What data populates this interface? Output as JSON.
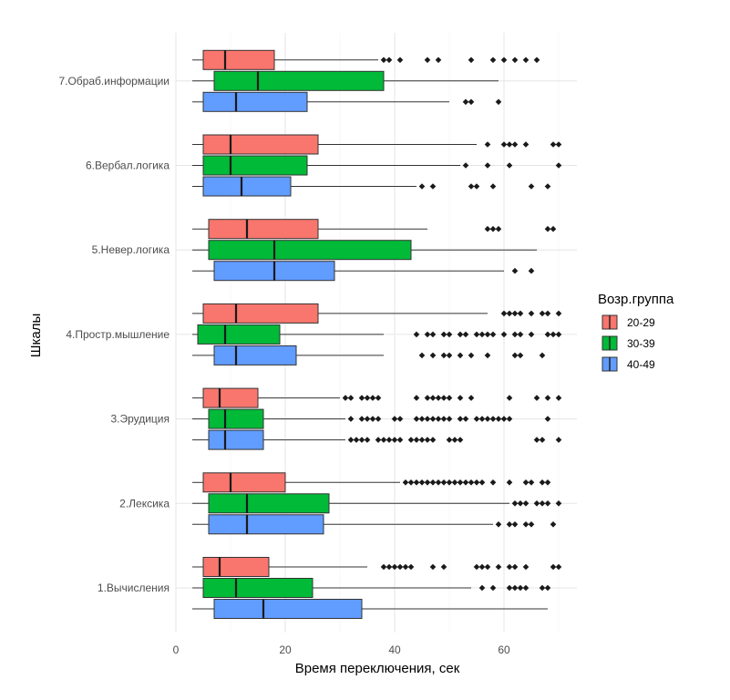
{
  "chart_data": {
    "type": "boxplot",
    "orientation": "horizontal",
    "xlabel": "Время переключения, сек",
    "ylabel": "Шкалы",
    "xlim": [
      -1,
      72
    ],
    "x_ticks": [
      0,
      20,
      40,
      60
    ],
    "grid": true,
    "legend": {
      "title": "Возр.группа",
      "position": "right",
      "entries": [
        "20-29",
        "30-39",
        "40-49"
      ]
    },
    "colors": {
      "20-29": "#F8766D",
      "30-39": "#00BA38",
      "40-49": "#619CFF"
    },
    "categories": [
      "1.Вычисления",
      "2.Лексика",
      "3.Эрудиция",
      "4.Простр.мышление",
      "5.Невер.логика",
      "6.Вербал.логика",
      "7.Обраб.информации"
    ],
    "series": [
      {
        "name": "20-29",
        "boxes": [
          {
            "min": 3,
            "q1": 5,
            "median": 8,
            "q3": 17,
            "max": 35,
            "outliers": [
              38,
              39,
              40,
              41,
              42,
              43,
              47,
              49,
              55,
              56,
              57,
              59,
              61,
              62,
              64,
              69,
              70
            ]
          },
          {
            "min": 3,
            "q1": 5,
            "median": 10,
            "q3": 20,
            "max": 41,
            "outliers": [
              42,
              43,
              44,
              45,
              46,
              47,
              48,
              49,
              50,
              51,
              52,
              53,
              54,
              55,
              56,
              58,
              61,
              64,
              65,
              67,
              68
            ]
          },
          {
            "min": 3,
            "q1": 5,
            "median": 8,
            "q3": 15,
            "max": 30,
            "outliers": [
              31,
              32,
              34,
              35,
              36,
              37,
              44,
              46,
              47,
              48,
              49,
              50,
              52,
              54,
              61,
              66,
              68,
              70
            ]
          },
          {
            "min": 3,
            "q1": 5,
            "median": 11,
            "q3": 26,
            "max": 57,
            "outliers": [
              60,
              61,
              62,
              63,
              65,
              67,
              68,
              70
            ]
          },
          {
            "min": 3,
            "q1": 6,
            "median": 13,
            "q3": 26,
            "max": 46,
            "outliers": [
              57,
              58,
              59,
              68,
              69
            ]
          },
          {
            "min": 3,
            "q1": 5,
            "median": 10,
            "q3": 26,
            "max": 55,
            "outliers": [
              57,
              60,
              61,
              62,
              64,
              69,
              70
            ]
          },
          {
            "min": 3,
            "q1": 5,
            "median": 9,
            "q3": 18,
            "max": 37,
            "outliers": [
              38,
              39,
              41,
              46,
              48,
              54,
              58,
              60,
              62,
              64,
              66
            ]
          }
        ]
      },
      {
        "name": "30-39",
        "boxes": [
          {
            "min": 3,
            "q1": 5,
            "median": 11,
            "q3": 25,
            "max": 54,
            "outliers": [
              56,
              58,
              61,
              62,
              63,
              64,
              67,
              68
            ]
          },
          {
            "min": 3,
            "q1": 6,
            "median": 13,
            "q3": 28,
            "max": 61,
            "outliers": [
              62,
              63,
              64,
              66,
              67,
              68,
              70
            ]
          },
          {
            "min": 3,
            "q1": 6,
            "median": 9,
            "q3": 16,
            "max": 31,
            "outliers": [
              32,
              34,
              35,
              36,
              37,
              40,
              41,
              44,
              45,
              46,
              47,
              48,
              49,
              50,
              52,
              53,
              55,
              56,
              57,
              58,
              59,
              60,
              61,
              68
            ]
          },
          {
            "min": 3,
            "q1": 4,
            "median": 9,
            "q3": 19,
            "max": 38,
            "outliers": [
              44,
              46,
              47,
              49,
              50,
              52,
              53,
              55,
              56,
              57,
              58,
              60,
              62,
              63,
              65,
              68,
              69,
              70
            ]
          },
          {
            "min": 3,
            "q1": 6,
            "median": 18,
            "q3": 43,
            "max": 66,
            "outliers": []
          },
          {
            "min": 3,
            "q1": 5,
            "median": 10,
            "q3": 24,
            "max": 52,
            "outliers": [
              53,
              57,
              61,
              70
            ]
          },
          {
            "min": 3,
            "q1": 7,
            "median": 15,
            "q3": 38,
            "max": 59,
            "outliers": []
          }
        ]
      },
      {
        "name": "40-49",
        "boxes": [
          {
            "min": 3,
            "q1": 7,
            "median": 16,
            "q3": 34,
            "max": 68,
            "outliers": []
          },
          {
            "min": 3,
            "q1": 6,
            "median": 13,
            "q3": 27,
            "max": 58,
            "outliers": [
              59,
              61,
              62,
              64,
              65,
              69
            ]
          },
          {
            "min": 3,
            "q1": 6,
            "median": 9,
            "q3": 16,
            "max": 31,
            "outliers": [
              32,
              33,
              34,
              35,
              37,
              38,
              39,
              40,
              41,
              43,
              44,
              45,
              46,
              47,
              50,
              51,
              52,
              66,
              67,
              70
            ]
          },
          {
            "min": 3,
            "q1": 7,
            "median": 11,
            "q3": 22,
            "max": 38,
            "outliers": [
              45,
              47,
              49,
              50,
              52,
              54,
              57,
              62,
              63,
              67
            ]
          },
          {
            "min": 3,
            "q1": 7,
            "median": 18,
            "q3": 29,
            "max": 60,
            "outliers": [
              62,
              65
            ]
          },
          {
            "min": 3,
            "q1": 5,
            "median": 12,
            "q3": 21,
            "max": 44,
            "outliers": [
              45,
              47,
              54,
              55,
              58,
              65,
              68
            ]
          },
          {
            "min": 3,
            "q1": 5,
            "median": 11,
            "q3": 24,
            "max": 50,
            "outliers": [
              53,
              54,
              59
            ]
          }
        ]
      }
    ]
  }
}
